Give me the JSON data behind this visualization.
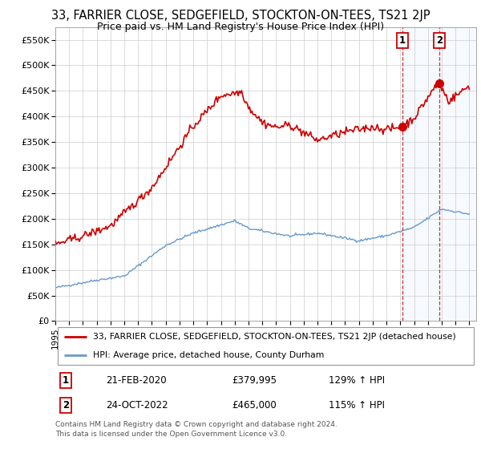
{
  "title": "33, FARRIER CLOSE, SEDGEFIELD, STOCKTON-ON-TEES, TS21 2JP",
  "subtitle": "Price paid vs. HM Land Registry's House Price Index (HPI)",
  "ylim": [
    0,
    575000
  ],
  "yticks": [
    0,
    50000,
    100000,
    150000,
    200000,
    250000,
    300000,
    350000,
    400000,
    450000,
    500000,
    550000
  ],
  "ytick_labels": [
    "£0",
    "£50K",
    "£100K",
    "£150K",
    "£200K",
    "£250K",
    "£300K",
    "£350K",
    "£400K",
    "£450K",
    "£500K",
    "£550K"
  ],
  "hpi_color": "#6699cc",
  "price_color": "#cc0000",
  "marker_color": "#cc0000",
  "vline_color": "#cc0000",
  "sale1_date": 2020.13,
  "sale1_price": 379995,
  "sale2_date": 2022.81,
  "sale2_price": 465000,
  "legend_line1": "33, FARRIER CLOSE, SEDGEFIELD, STOCKTON-ON-TEES, TS21 2JP (detached house)",
  "legend_line2": "HPI: Average price, detached house, County Durham",
  "table_row1": [
    "1",
    "21-FEB-2020",
    "£379,995",
    "129% ↑ HPI"
  ],
  "table_row2": [
    "2",
    "24-OCT-2022",
    "£465,000",
    "115% ↑ HPI"
  ],
  "footnote": "Contains HM Land Registry data © Crown copyright and database right 2024.\nThis data is licensed under the Open Government Licence v3.0.",
  "background_color": "#ffffff",
  "grid_color": "#cccccc",
  "title_fontsize": 10.5,
  "subtitle_fontsize": 9
}
